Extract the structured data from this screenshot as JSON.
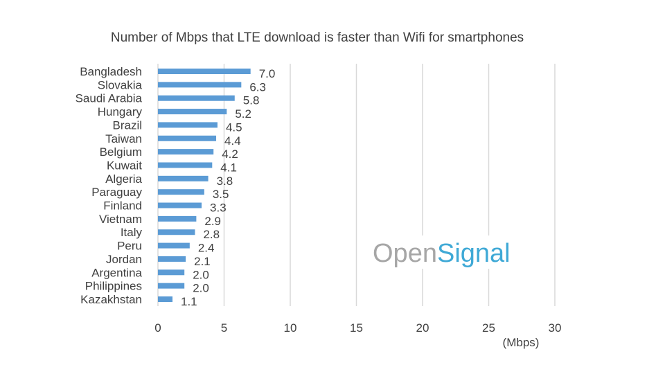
{
  "chart_data": {
    "type": "bar",
    "orientation": "horizontal",
    "title": "Number of Mbps that LTE download is faster than Wifi for smartphones",
    "categories": [
      "Bangladesh",
      "Slovakia",
      "Saudi Arabia",
      "Hungary",
      "Brazil",
      "Taiwan",
      "Belgium",
      "Kuwait",
      "Algeria",
      "Paraguay",
      "Finland",
      "Vietnam",
      "Italy",
      "Peru",
      "Jordan",
      "Argentina",
      "Philippines",
      "Kazakhstan"
    ],
    "values": [
      7.0,
      6.3,
      5.8,
      5.2,
      4.5,
      4.4,
      4.2,
      4.1,
      3.8,
      3.5,
      3.3,
      2.9,
      2.8,
      2.4,
      2.1,
      2.0,
      2.0,
      1.1
    ],
    "value_labels": [
      "7.0",
      "6.3",
      "5.8",
      "5.2",
      "4.5",
      "4.4",
      "4.2",
      "4.1",
      "3.8",
      "3.5",
      "3.3",
      "2.9",
      "2.8",
      "2.4",
      "2.1",
      "2.0",
      "2.0",
      "1.1"
    ],
    "xlabel": "(Mbps)",
    "xlim": [
      0,
      30
    ],
    "xticks": [
      "0",
      "5",
      "10",
      "15",
      "20",
      "25",
      "30"
    ],
    "grid": "vertical",
    "bar_color": "#5B9BD5",
    "legend": "none"
  },
  "watermark": {
    "part1": "Open",
    "part2": "Signal",
    "color1": "#a6a6a6",
    "color2": "#3fa9d6"
  }
}
